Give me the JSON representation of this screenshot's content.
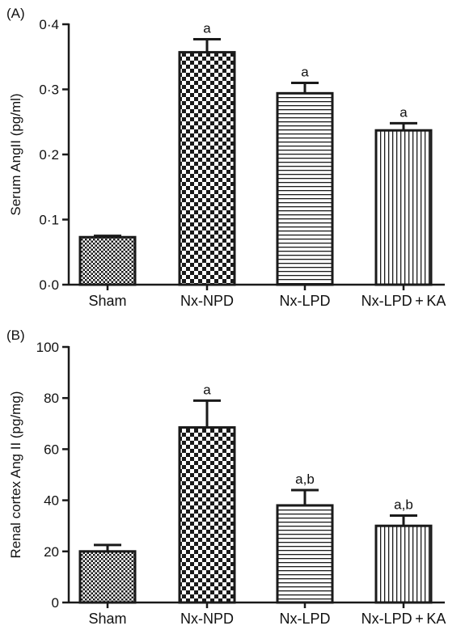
{
  "colors": {
    "ink": "#1a1a1a",
    "background": "#ffffff"
  },
  "chart_data": [
    {
      "type": "bar",
      "panel_label": "(A)",
      "ylabel": "Serum AngII (pg/ml)",
      "xlabel": "",
      "categories": [
        "Sham",
        "Nx-NPD",
        "Nx-LPD",
        "Nx-LPD + KA"
      ],
      "values": [
        0.073,
        0.357,
        0.294,
        0.237
      ],
      "errors": [
        0.002,
        0.02,
        0.016,
        0.011
      ],
      "annotations": [
        "",
        "a",
        "a",
        "a"
      ],
      "patterns": [
        "fine-checker",
        "checker",
        "horizontal-lines",
        "vertical-lines"
      ],
      "ylim": [
        0,
        0.4
      ],
      "yticks": [
        0,
        0.1,
        0.2,
        0.3,
        0.4
      ],
      "ytick_labels": [
        "0·0",
        "0·1",
        "0·2",
        "0·3",
        "0·4"
      ],
      "grid": false
    },
    {
      "type": "bar",
      "panel_label": "(B)",
      "ylabel": "Renal cortex Ang II (pg/mg)",
      "xlabel": "",
      "categories": [
        "Sham",
        "Nx-NPD",
        "Nx-LPD",
        "Nx-LPD + KA"
      ],
      "values": [
        20,
        68.5,
        38,
        30
      ],
      "errors": [
        2.5,
        10.5,
        6,
        4
      ],
      "annotations": [
        "",
        "a",
        "a,b",
        "a,b"
      ],
      "patterns": [
        "fine-checker",
        "checker",
        "horizontal-lines",
        "vertical-lines"
      ],
      "ylim": [
        0,
        100
      ],
      "yticks": [
        0,
        20,
        40,
        60,
        80,
        100
      ],
      "ytick_labels": [
        "0",
        "20",
        "40",
        "60",
        "80",
        "100"
      ],
      "grid": false
    }
  ]
}
